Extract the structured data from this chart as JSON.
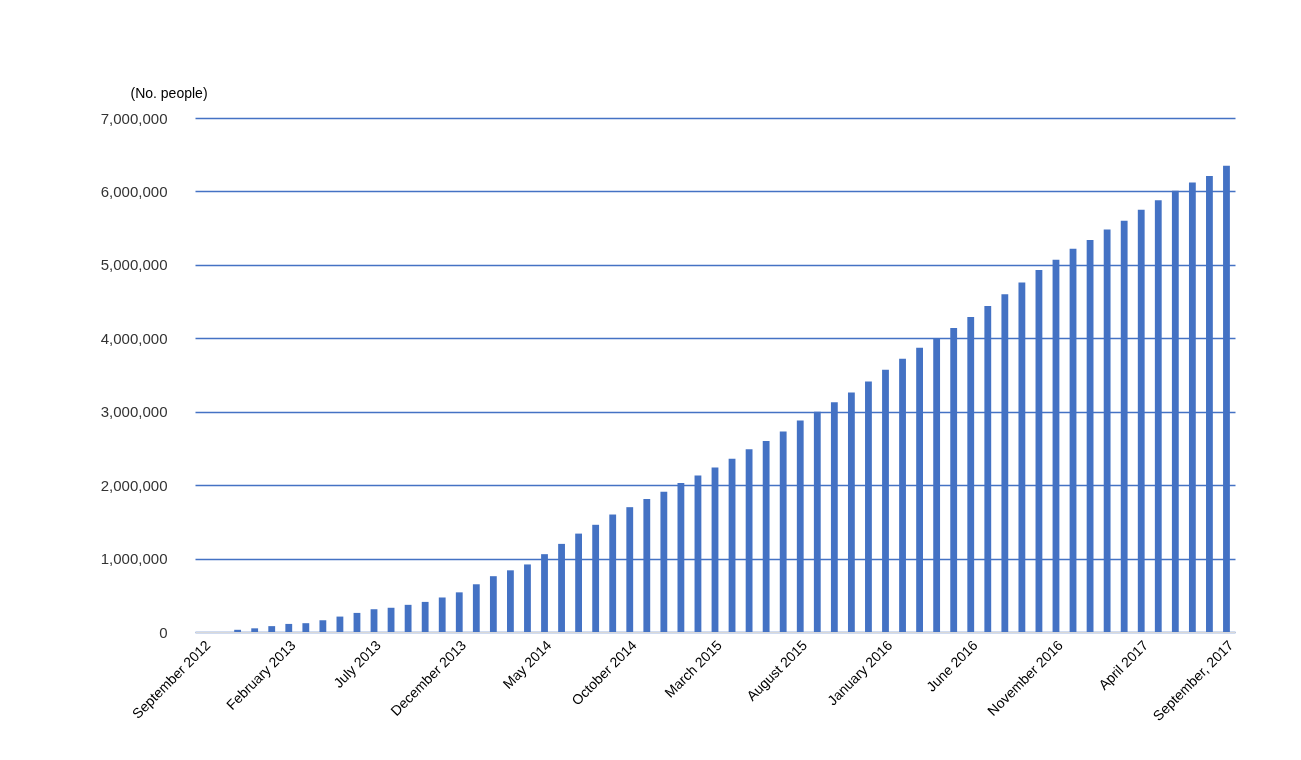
{
  "chart_data": {
    "type": "bar",
    "ylabel": "(No. people)",
    "color": "#4472c4",
    "categories": [
      "September 2012",
      null,
      null,
      null,
      null,
      "February 2013",
      null,
      null,
      null,
      null,
      "July 2013",
      null,
      null,
      null,
      null,
      "December 2013",
      null,
      null,
      null,
      null,
      "May 2014",
      null,
      null,
      null,
      null,
      "October 2014",
      null,
      null,
      null,
      null,
      "March 2015",
      null,
      null,
      null,
      null,
      "August 2015",
      null,
      null,
      null,
      null,
      "January 2016",
      null,
      null,
      null,
      null,
      "June 2016",
      null,
      null,
      null,
      null,
      "November 2016",
      null,
      null,
      null,
      null,
      "April 2017",
      null,
      null,
      null,
      null,
      "September, 2017"
    ],
    "values": [
      0,
      0,
      30000,
      50000,
      80000,
      110000,
      120000,
      160000,
      210000,
      260000,
      310000,
      330000,
      370000,
      410000,
      470000,
      540000,
      650000,
      760000,
      840000,
      920000,
      1060000,
      1200000,
      1340000,
      1460000,
      1600000,
      1700000,
      1810000,
      1910000,
      2030000,
      2130000,
      2240000,
      2360000,
      2490000,
      2600000,
      2730000,
      2880000,
      3000000,
      3130000,
      3260000,
      3410000,
      3570000,
      3720000,
      3870000,
      4000000,
      4140000,
      4290000,
      4440000,
      4600000,
      4760000,
      4930000,
      5070000,
      5220000,
      5340000,
      5480000,
      5600000,
      5750000,
      5880000,
      6010000,
      6120000,
      6210000,
      6350000
    ],
    "ylim": [
      0,
      7000000
    ],
    "yticks": [
      0,
      {
        "value": 1000000,
        "label": "1,000,000"
      },
      {
        "value": 2000000,
        "label": "2,000,000"
      },
      {
        "value": 3000000,
        "label": "3,000,000"
      },
      {
        "value": 4000000,
        "label": "4,000,000"
      },
      {
        "value": 5000000,
        "label": "5,000,000"
      },
      {
        "value": 6000000,
        "label": "6,000,000"
      },
      {
        "value": 7000000,
        "label": "7,000,000"
      }
    ],
    "grid": "y"
  }
}
